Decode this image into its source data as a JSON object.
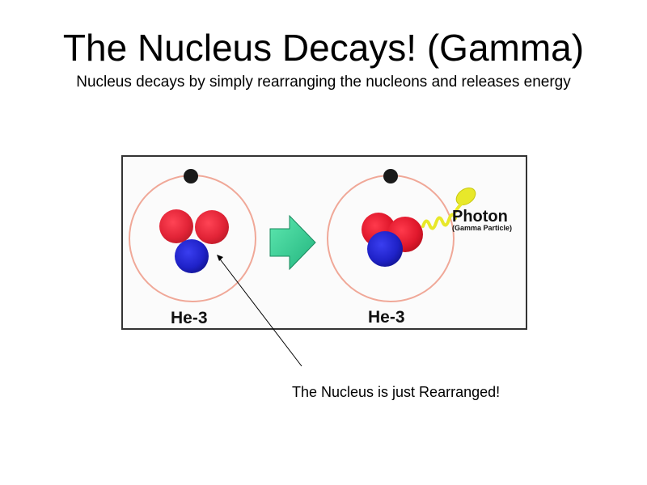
{
  "slide": {
    "title": "The Nucleus Decays! (Gamma)",
    "subtitle": "Nucleus decays by simply rearranging the nucleons and releases energy"
  },
  "diagram": {
    "before_label": "He-3",
    "after_label": "He-3",
    "photon_label": "Photon",
    "photon_sublabel": "(Gamma Particle)",
    "caption": "The Nucleus is just Rearranged!"
  },
  "colors": {
    "proton": "#e0182c",
    "neutron": "#1f22c8",
    "electron": "#1a1a1a",
    "orbit": "#f0a898",
    "arrow_fill": "#3cd49a",
    "photon": "#e8e82a"
  }
}
